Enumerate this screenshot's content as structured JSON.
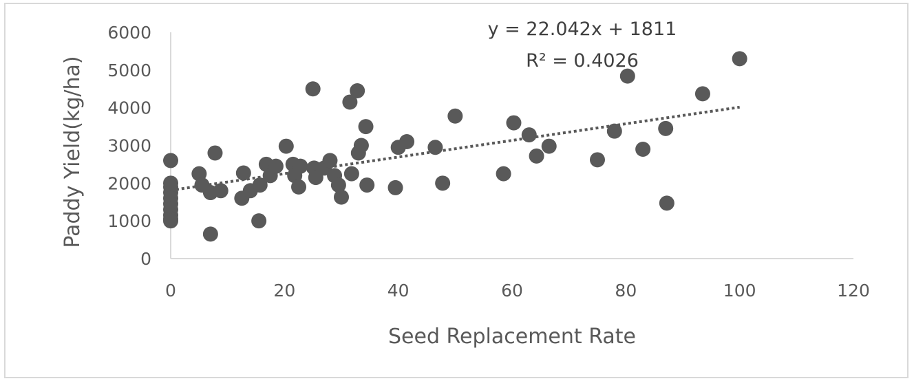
{
  "chart_data": {
    "type": "scatter",
    "title": "",
    "xlabel": "Seed Replacement Rate",
    "ylabel": "Paddy Yield(kg/ha)",
    "xlim": [
      0,
      120
    ],
    "ylim": [
      0,
      6000
    ],
    "x_ticks": [
      "0",
      "20",
      "40",
      "60",
      "80",
      "100",
      "120"
    ],
    "y_ticks": [
      "0",
      "1000",
      "2000",
      "3000",
      "4000",
      "5000",
      "6000"
    ],
    "grid": false,
    "legend": "none",
    "marker_color": "#595959",
    "trendline": {
      "type": "linear",
      "style": "dotted",
      "slope": 22.042,
      "intercept": 1811,
      "x_range": [
        0,
        100
      ],
      "equation_label": "y = 22.042x + 1811",
      "r2_label": "R² = 0.4026"
    },
    "points": [
      {
        "x": 0,
        "y": 2600
      },
      {
        "x": 0,
        "y": 2000
      },
      {
        "x": 0,
        "y": 1900
      },
      {
        "x": 0,
        "y": 1750
      },
      {
        "x": 0,
        "y": 1600
      },
      {
        "x": 0,
        "y": 1450
      },
      {
        "x": 0,
        "y": 1300
      },
      {
        "x": 0,
        "y": 1150
      },
      {
        "x": 0,
        "y": 1050
      },
      {
        "x": 0,
        "y": 1000
      },
      {
        "x": 5,
        "y": 2250
      },
      {
        "x": 5.5,
        "y": 1950
      },
      {
        "x": 7,
        "y": 1750
      },
      {
        "x": 7,
        "y": 650
      },
      {
        "x": 7.8,
        "y": 2800
      },
      {
        "x": 8.8,
        "y": 1800
      },
      {
        "x": 12.5,
        "y": 1600
      },
      {
        "x": 12.8,
        "y": 2270
      },
      {
        "x": 14,
        "y": 1800
      },
      {
        "x": 15.5,
        "y": 1000
      },
      {
        "x": 15.7,
        "y": 1950
      },
      {
        "x": 16.8,
        "y": 2500
      },
      {
        "x": 17.5,
        "y": 2200
      },
      {
        "x": 18.5,
        "y": 2450
      },
      {
        "x": 20.3,
        "y": 2980
      },
      {
        "x": 21.5,
        "y": 2500
      },
      {
        "x": 21.8,
        "y": 2200
      },
      {
        "x": 22.5,
        "y": 1900
      },
      {
        "x": 22.8,
        "y": 2450
      },
      {
        "x": 25,
        "y": 4500
      },
      {
        "x": 25.2,
        "y": 2400
      },
      {
        "x": 25.5,
        "y": 2150
      },
      {
        "x": 27,
        "y": 2400
      },
      {
        "x": 28,
        "y": 2600
      },
      {
        "x": 28.8,
        "y": 2200
      },
      {
        "x": 29.5,
        "y": 1950
      },
      {
        "x": 30,
        "y": 1630
      },
      {
        "x": 31.5,
        "y": 4150
      },
      {
        "x": 31.8,
        "y": 2250
      },
      {
        "x": 32.8,
        "y": 4450
      },
      {
        "x": 33,
        "y": 2800
      },
      {
        "x": 33.5,
        "y": 3000
      },
      {
        "x": 34.3,
        "y": 3500
      },
      {
        "x": 34.5,
        "y": 1950
      },
      {
        "x": 39.5,
        "y": 1880
      },
      {
        "x": 40,
        "y": 2950
      },
      {
        "x": 41.5,
        "y": 3100
      },
      {
        "x": 46.5,
        "y": 2950
      },
      {
        "x": 47.8,
        "y": 2000
      },
      {
        "x": 50,
        "y": 3780
      },
      {
        "x": 58.5,
        "y": 2250
      },
      {
        "x": 60.3,
        "y": 3600
      },
      {
        "x": 63,
        "y": 3280
      },
      {
        "x": 64.3,
        "y": 2720
      },
      {
        "x": 66.5,
        "y": 2980
      },
      {
        "x": 75,
        "y": 2620
      },
      {
        "x": 78,
        "y": 3380
      },
      {
        "x": 80.3,
        "y": 4840
      },
      {
        "x": 83,
        "y": 2900
      },
      {
        "x": 87,
        "y": 3450
      },
      {
        "x": 87.2,
        "y": 1470
      },
      {
        "x": 93.5,
        "y": 4370
      },
      {
        "x": 100,
        "y": 5300
      }
    ]
  }
}
